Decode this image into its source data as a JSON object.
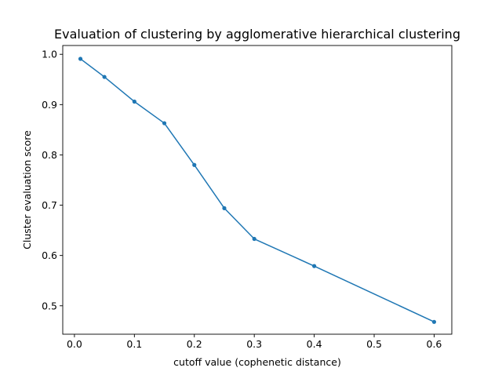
{
  "chart_data": {
    "type": "line",
    "title": "Evaluation of clustering by agglomerative hierarchical clustering",
    "xlabel": "cutoff value (cophenetic distance)",
    "ylabel": "Cluster evaluation score",
    "xlim": [
      -0.0195,
      0.6295
    ],
    "ylim": [
      0.4435,
      1.0175
    ],
    "xticks": [
      0.0,
      0.1,
      0.2,
      0.3,
      0.4,
      0.5,
      0.6
    ],
    "xtick_labels": [
      "0.0",
      "0.1",
      "0.2",
      "0.3",
      "0.4",
      "0.5",
      "0.6"
    ],
    "yticks": [
      0.5,
      0.6,
      0.7,
      0.8,
      0.9,
      1.0
    ],
    "ytick_labels": [
      "0.5",
      "0.6",
      "0.7",
      "0.8",
      "0.9",
      "1.0"
    ],
    "grid": false,
    "color": "#1f77b4",
    "series": [
      {
        "x": [
          0.01,
          0.05,
          0.1,
          0.15,
          0.2,
          0.25,
          0.3,
          0.4,
          0.6
        ],
        "y": [
          0.991,
          0.955,
          0.906,
          0.863,
          0.78,
          0.694,
          0.633,
          0.579,
          0.468
        ]
      }
    ]
  }
}
